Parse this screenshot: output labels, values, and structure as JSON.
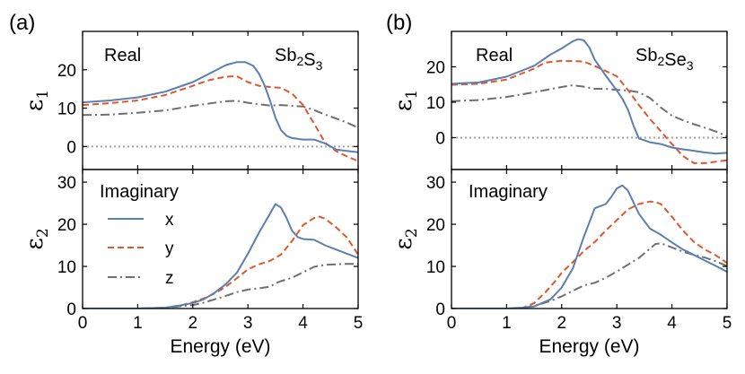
{
  "figure": {
    "colors": {
      "x": "#5b7fb0",
      "y": "#e0572b",
      "z": "#6f6f6f",
      "zero_line": "#a6a6a6"
    },
    "panels": [
      {
        "label": "(a)",
        "compound": {
          "text": "Sb2S3",
          "base": [
            "Sb",
            "S"
          ],
          "subs": [
            "2",
            "3"
          ]
        }
      },
      {
        "label": "(b)",
        "compound": {
          "text": "Sb2Se3",
          "base": [
            "Sb",
            "Se"
          ],
          "subs": [
            "2",
            "3"
          ]
        }
      }
    ],
    "real_label": "Real",
    "imag_label": "Imaginary",
    "xlabel": "Energy (eV)",
    "ylabel_real": {
      "symbol": "ε",
      "sub": "1"
    },
    "ylabel_imag": {
      "symbol": "ε",
      "sub": "2"
    },
    "legend": [
      {
        "key": "x",
        "label": "x"
      },
      {
        "key": "y",
        "label": "y"
      },
      {
        "key": "z",
        "label": "z"
      }
    ]
  },
  "chart_data": [
    {
      "id": "a-real",
      "type": "line",
      "panel": "(a)",
      "annotations": [
        "Real",
        "Sb2S3"
      ],
      "ylabel": "ε1",
      "xlim": [
        0,
        5
      ],
      "ylim": [
        -6,
        30
      ],
      "xticks": [
        0,
        1,
        2,
        3,
        4,
        5
      ],
      "yticks": [
        0,
        10,
        20
      ],
      "zero_line": true,
      "series": [
        {
          "name": "x",
          "x": [
            0,
            0.5,
            1,
            1.5,
            2,
            2.3,
            2.6,
            2.8,
            2.95,
            3.1,
            3.2,
            3.3,
            3.4,
            3.5,
            3.6,
            3.7,
            3.8,
            3.9,
            4.0,
            4.2,
            4.4,
            4.6,
            5.0
          ],
          "y": [
            11.5,
            12,
            12.8,
            14.3,
            16.8,
            19,
            21.2,
            22,
            22,
            21,
            19,
            16,
            12,
            7.5,
            4.3,
            2.8,
            2.2,
            2,
            1.8,
            1.8,
            0.8,
            -0.8,
            -1.5
          ]
        },
        {
          "name": "y",
          "x": [
            0,
            0.5,
            1,
            1.5,
            2,
            2.3,
            2.6,
            2.8,
            3.0,
            3.2,
            3.4,
            3.6,
            3.8,
            4.0,
            4.2,
            4.4,
            4.6,
            4.8,
            5.0
          ],
          "y": [
            10.8,
            11.3,
            12,
            13.4,
            15.8,
            17.3,
            18.2,
            18.3,
            16.8,
            15.8,
            15.5,
            15.3,
            13.8,
            10.8,
            6,
            1,
            -1.2,
            -2.6,
            -3.8
          ]
        },
        {
          "name": "z",
          "x": [
            0,
            0.5,
            1,
            1.5,
            2,
            2.3,
            2.6,
            2.8,
            3.0,
            3.2,
            3.4,
            3.6,
            3.8,
            4.0,
            4.2,
            4.4,
            4.6,
            4.8,
            5.0
          ],
          "y": [
            8.2,
            8.3,
            8.8,
            9.4,
            10.6,
            11.2,
            11.8,
            11.9,
            11.4,
            11,
            10.7,
            10.8,
            10.6,
            10.4,
            9.5,
            8.3,
            7.3,
            6.2,
            4.9
          ]
        }
      ]
    },
    {
      "id": "a-imag",
      "type": "line",
      "panel": "(a)",
      "annotations": [
        "Imaginary"
      ],
      "xlabel": "Energy (eV)",
      "ylabel": "ε2",
      "xlim": [
        0,
        5
      ],
      "ylim": [
        0,
        33
      ],
      "xticks": [
        0,
        1,
        2,
        3,
        4,
        5
      ],
      "yticks": [
        0,
        10,
        20,
        30
      ],
      "legend": [
        "x",
        "y",
        "z"
      ],
      "series": [
        {
          "name": "x",
          "x": [
            0,
            1,
            1.5,
            1.8,
            2,
            2.2,
            2.4,
            2.6,
            2.8,
            3.0,
            3.2,
            3.4,
            3.5,
            3.6,
            3.7,
            3.8,
            3.9,
            4.0,
            4.2,
            4.4,
            4.6,
            4.8,
            5.0
          ],
          "y": [
            0,
            0,
            0.2,
            0.8,
            1.3,
            2.2,
            3.8,
            5.8,
            8.5,
            13,
            18,
            22.5,
            24.8,
            24,
            21.5,
            18.5,
            17,
            16.5,
            16.3,
            15,
            14,
            13,
            12
          ]
        },
        {
          "name": "y",
          "x": [
            0,
            1,
            1.5,
            1.8,
            2,
            2.2,
            2.4,
            2.6,
            2.8,
            3.0,
            3.2,
            3.4,
            3.6,
            3.8,
            4.0,
            4.2,
            4.3,
            4.4,
            4.6,
            4.8,
            5.0
          ],
          "y": [
            0,
            0,
            0.2,
            0.8,
            1.5,
            2.4,
            3.6,
            5.2,
            7.2,
            9.3,
            10.5,
            11.3,
            12.8,
            16,
            19.8,
            21.5,
            21.8,
            21.3,
            19.3,
            16.8,
            12.8
          ]
        },
        {
          "name": "z",
          "x": [
            0,
            1,
            1.5,
            2,
            2.2,
            2.4,
            2.6,
            2.8,
            3.0,
            3.2,
            3.4,
            3.5,
            3.6,
            3.8,
            4.0,
            4.2,
            4.4,
            4.6,
            4.8,
            5.0
          ],
          "y": [
            0,
            0,
            0.2,
            0.8,
            1.4,
            2.2,
            3,
            3.9,
            4.5,
            4.8,
            5.2,
            6,
            6.5,
            7.3,
            8.6,
            9.9,
            10.4,
            10.5,
            10.6,
            10.6
          ]
        }
      ]
    },
    {
      "id": "b-real",
      "type": "line",
      "panel": "(b)",
      "annotations": [
        "Real",
        "Sb2Se3"
      ],
      "ylabel": "ε1",
      "xlim": [
        0,
        5
      ],
      "ylim": [
        -9,
        30
      ],
      "xticks": [
        0,
        1,
        2,
        3,
        4,
        5
      ],
      "yticks": [
        0,
        10,
        20
      ],
      "zero_line": true,
      "series": [
        {
          "name": "x",
          "x": [
            0,
            0.5,
            1,
            1.5,
            1.8,
            2.0,
            2.2,
            2.3,
            2.4,
            2.5,
            2.6,
            2.8,
            3.0,
            3.1,
            3.2,
            3.3,
            3.4,
            3.6,
            3.8,
            4.0,
            4.2,
            4.4,
            4.6,
            4.8,
            5.0
          ],
          "y": [
            15.2,
            15.6,
            17.2,
            20.3,
            23.5,
            25.2,
            27.2,
            27.8,
            27.5,
            25.5,
            22,
            17.5,
            13.3,
            11,
            8,
            3.5,
            -0.2,
            -1.3,
            -1.8,
            -2.8,
            -3.3,
            -3.7,
            -4.2,
            -4.5,
            -4.3
          ]
        },
        {
          "name": "y",
          "x": [
            0,
            0.5,
            1,
            1.5,
            1.7,
            2.0,
            2.2,
            2.4,
            2.6,
            2.8,
            3.0,
            3.2,
            3.4,
            3.6,
            3.8,
            4.0,
            4.2,
            4.4,
            4.6,
            4.8,
            5.0
          ],
          "y": [
            14.9,
            15.2,
            16.4,
            19.5,
            21.2,
            21.7,
            21.6,
            21.5,
            20.2,
            18.8,
            17.3,
            13.5,
            9.2,
            5.3,
            1.8,
            -1.8,
            -5.2,
            -7.2,
            -7.2,
            -6.8,
            -6.4
          ]
        },
        {
          "name": "z",
          "x": [
            0,
            0.5,
            1,
            1.5,
            2.0,
            2.2,
            2.4,
            2.6,
            2.8,
            3.0,
            3.2,
            3.4,
            3.6,
            3.8,
            4.0,
            4.2,
            4.4,
            4.6,
            4.8,
            5.0
          ],
          "y": [
            10.3,
            10.6,
            11.5,
            12.8,
            14.3,
            14.8,
            14.4,
            13.8,
            13.8,
            13.5,
            13.3,
            12.8,
            11.2,
            8.5,
            6.2,
            4.9,
            3.8,
            2.8,
            1.7,
            0.4
          ]
        }
      ]
    },
    {
      "id": "b-imag",
      "type": "line",
      "panel": "(b)",
      "annotations": [
        "Imaginary"
      ],
      "xlabel": "Energy (eV)",
      "ylabel": "ε2",
      "xlim": [
        0,
        5
      ],
      "ylim": [
        0,
        33
      ],
      "xticks": [
        0,
        1,
        2,
        3,
        4,
        5
      ],
      "yticks": [
        0,
        10,
        20,
        30
      ],
      "series": [
        {
          "name": "x",
          "x": [
            0,
            1,
            1.3,
            1.5,
            1.8,
            2.0,
            2.2,
            2.4,
            2.6,
            2.8,
            2.9,
            3.0,
            3.1,
            3.2,
            3.4,
            3.6,
            3.8,
            4.0,
            4.2,
            4.4,
            4.6,
            4.8,
            5.0
          ],
          "y": [
            0,
            0,
            0.2,
            0.5,
            2.2,
            5,
            9.5,
            17,
            23.8,
            24.8,
            26.5,
            28.5,
            29.2,
            28,
            22.5,
            19,
            17.5,
            15.7,
            14,
            12.7,
            11.4,
            10.1,
            8.7
          ]
        },
        {
          "name": "y",
          "x": [
            0,
            1,
            1.3,
            1.5,
            1.7,
            1.9,
            2.0,
            2.2,
            2.4,
            2.6,
            2.8,
            3.0,
            3.2,
            3.4,
            3.6,
            3.7,
            3.8,
            4.0,
            4.2,
            4.4,
            4.6,
            4.8,
            5.0
          ],
          "y": [
            0,
            0,
            0.2,
            1.3,
            3.8,
            6.8,
            8.5,
            11,
            13.6,
            15.8,
            18.5,
            21,
            23.5,
            24.8,
            25.4,
            25.3,
            24.8,
            21.8,
            18.5,
            15.8,
            14,
            12.6,
            10.8
          ]
        },
        {
          "name": "z",
          "x": [
            0,
            1,
            1.3,
            1.5,
            1.8,
            2.0,
            2.2,
            2.4,
            2.6,
            2.8,
            3.0,
            3.2,
            3.4,
            3.6,
            3.7,
            3.8,
            4.0,
            4.2,
            4.4,
            4.6,
            4.8,
            5.0
          ],
          "y": [
            0,
            0,
            0.2,
            0.6,
            1.8,
            2.9,
            4.2,
            5.5,
            6.1,
            7.3,
            8.8,
            10.4,
            12,
            14.2,
            15.3,
            15.5,
            14.5,
            13.5,
            12.7,
            12.1,
            11.2,
            10.1
          ]
        }
      ]
    }
  ]
}
